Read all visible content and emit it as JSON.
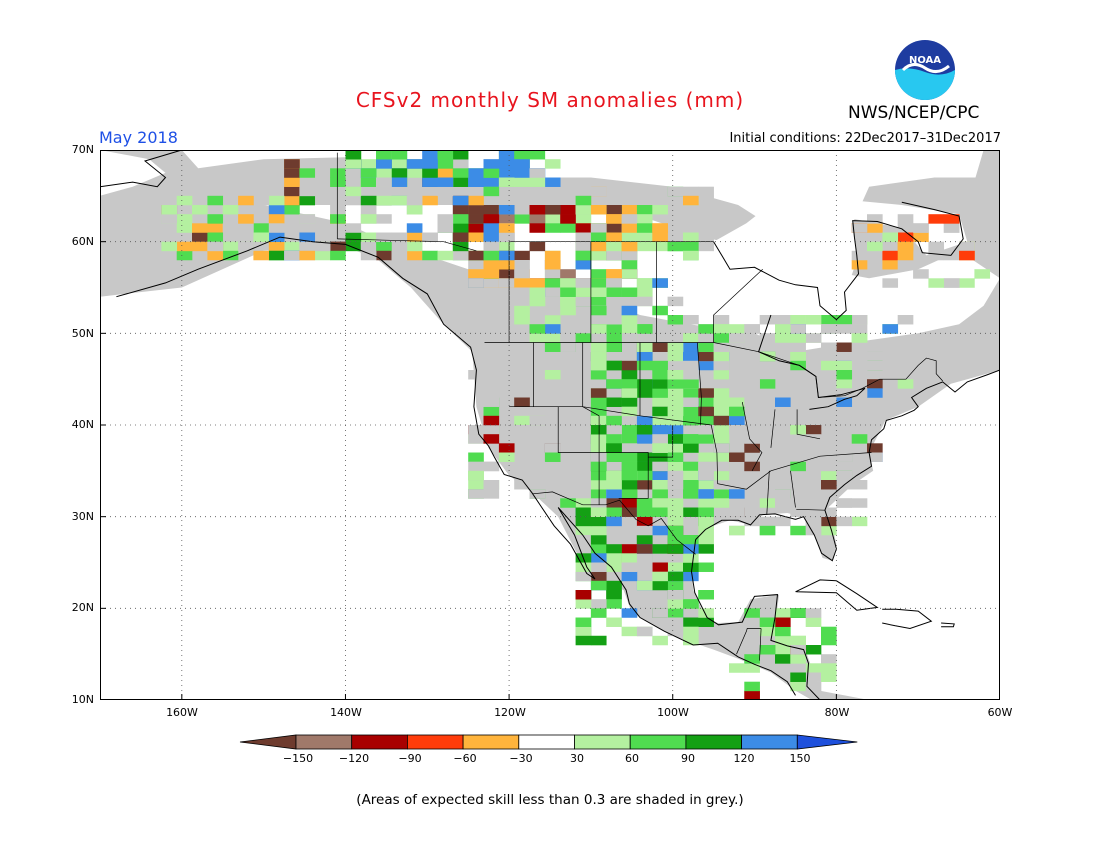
{
  "title": "CFSv2 monthly SM anomalies (mm)",
  "target_month": "May 2018",
  "initial_conditions": "Initial conditions: 22Dec2017–31Dec2017",
  "agency": "NWS/NCEP/CPC",
  "logo_text": "NOAA",
  "footnote": "(Areas of expected skill less than 0.3 are shaded in grey.)",
  "map": {
    "lat_labels": [
      "70N",
      "60N",
      "50N",
      "40N",
      "30N",
      "20N",
      "10N"
    ],
    "lon_labels": [
      "160W",
      "140W",
      "120W",
      "100W",
      "80W",
      "60W"
    ],
    "extent": {
      "lon": [
        -170,
        -60
      ],
      "lat": [
        10,
        70
      ]
    }
  },
  "legend": {
    "labels": [
      "−150",
      "−120",
      "−90",
      "−60",
      "−30",
      "30",
      "60",
      "90",
      "120",
      "150"
    ],
    "colors": [
      "#6e3b2e",
      "#a0796a",
      "#a80000",
      "#ff3c0a",
      "#ffb43c",
      "#ffffff",
      "#b4f0a0",
      "#50dc50",
      "#14a014",
      "#3c8ce6",
      "#1e50dc"
    ]
  },
  "colors": {
    "land_grey": "#c8c8c8",
    "ocean": "#ffffff",
    "title_red": "#e8141e",
    "month_blue": "#1e50e6"
  }
}
